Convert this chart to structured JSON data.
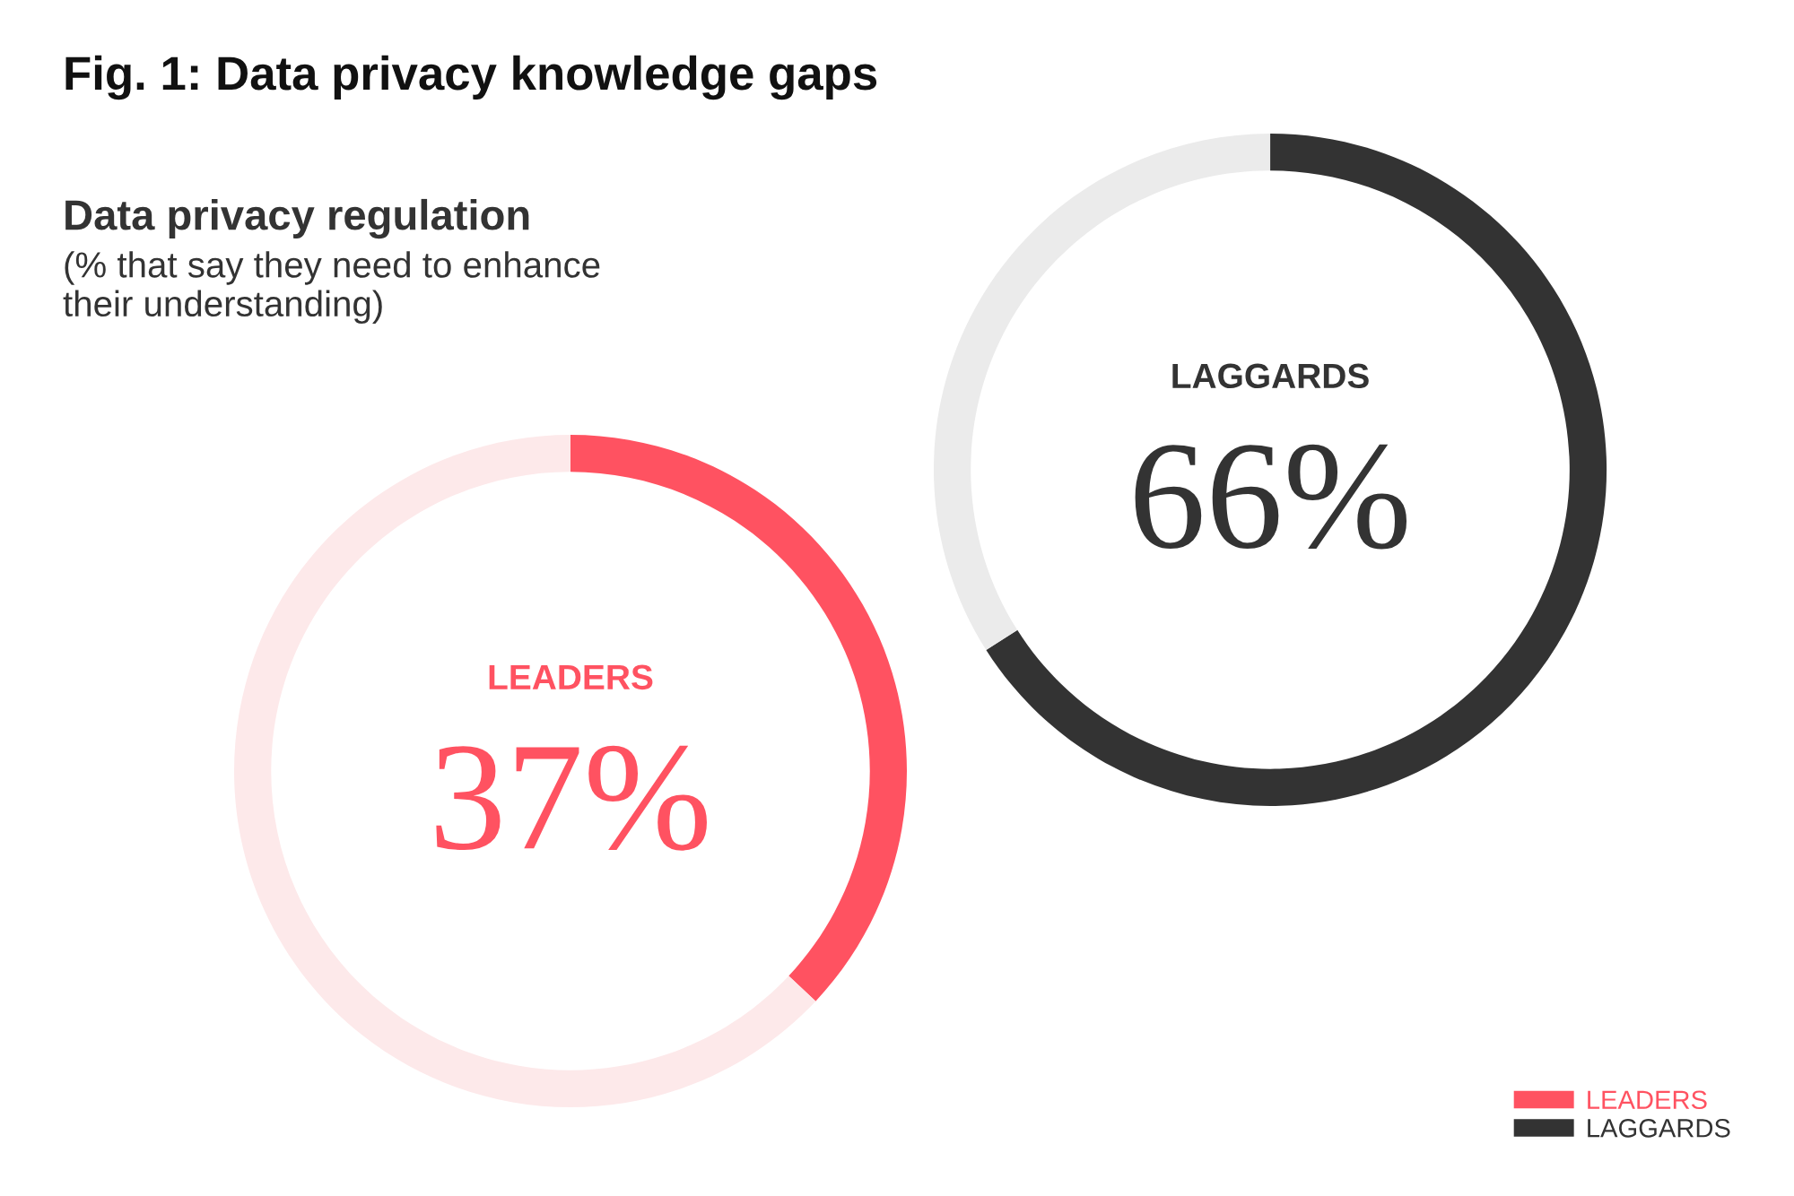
{
  "chart_data": [
    {
      "type": "donut",
      "title": "Fig. 1: Data privacy knowledge gaps",
      "subtitle": "Data privacy regulation",
      "annotations": [
        "(% that say they need to enhance\ntheir understanding)"
      ],
      "categories": [
        "LEADERS",
        null
      ],
      "values": [
        37,
        63
      ],
      "colors": [
        "#ff5261",
        "#fde9ea"
      ],
      "value_labels": [
        "37%",
        null
      ]
    },
    {
      "type": "donut",
      "categories": [
        "LAGGARDS",
        null
      ],
      "values": [
        66,
        34
      ],
      "colors": [
        "#333333",
        "#ebebeb"
      ],
      "value_labels": [
        "66%",
        null
      ],
      "legend": "bottom right"
    }
  ]
}
